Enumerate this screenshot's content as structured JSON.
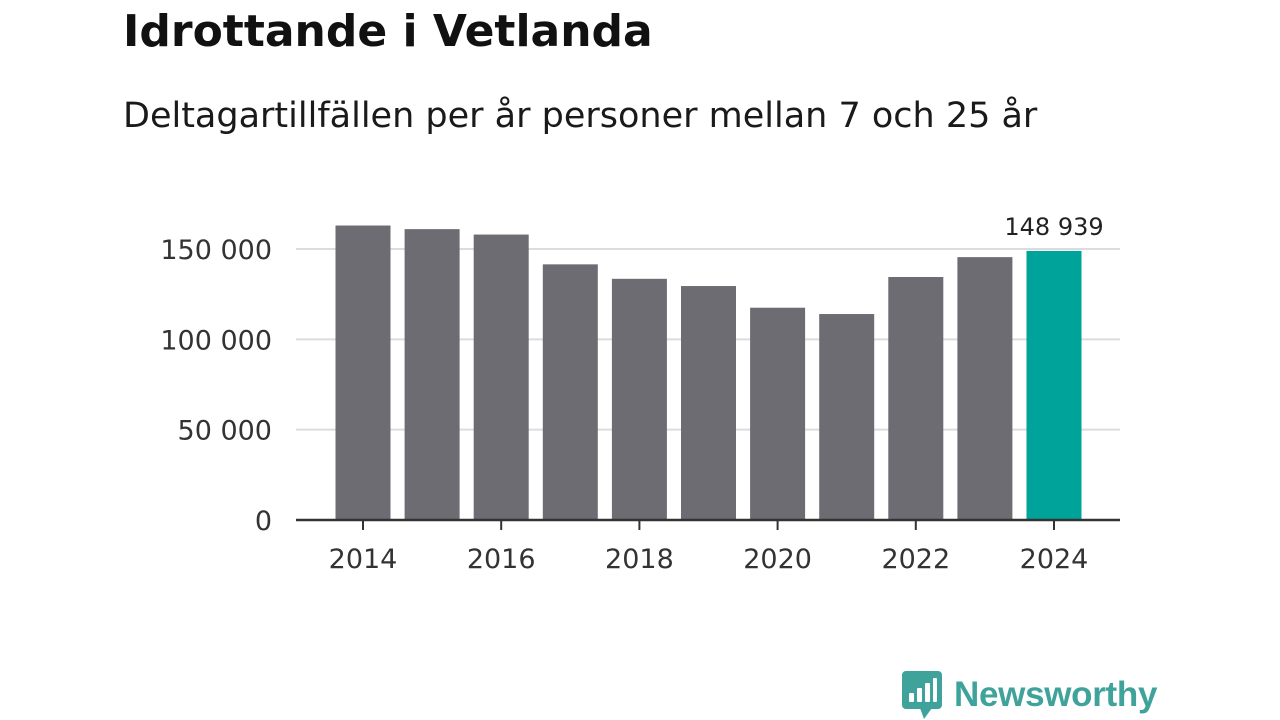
{
  "chart_data": {
    "type": "bar",
    "title": "Idrottande i Vetlanda",
    "subtitle": "Deltagartillfällen per år personer mellan 7 och 25 år",
    "categories": [
      "2014",
      "2015",
      "2016",
      "2017",
      "2018",
      "2019",
      "2020",
      "2021",
      "2022",
      "2023",
      "2024"
    ],
    "values": [
      163000,
      161000,
      158000,
      141500,
      133500,
      129500,
      117500,
      114000,
      134500,
      145500,
      148939
    ],
    "highlight_index": 10,
    "highlight_label": "148 939",
    "x_tick_labels": [
      "2014",
      "2016",
      "2018",
      "2020",
      "2022",
      "2024"
    ],
    "y_ticks": [
      0,
      50000,
      100000,
      150000
    ],
    "y_tick_labels": [
      "0",
      "50 000",
      "100 000",
      "150 000"
    ],
    "ylim": [
      0,
      165000
    ],
    "grid": true,
    "xlabel": "",
    "ylabel": "",
    "colors": {
      "bar": "#6d6c72",
      "highlight": "#00a39a",
      "grid": "#dcdcdc",
      "axis": "#333333"
    }
  },
  "brand": {
    "name": "Newsworthy",
    "color": "#3fa39b",
    "icon": "bar-chart-speech-icon"
  }
}
